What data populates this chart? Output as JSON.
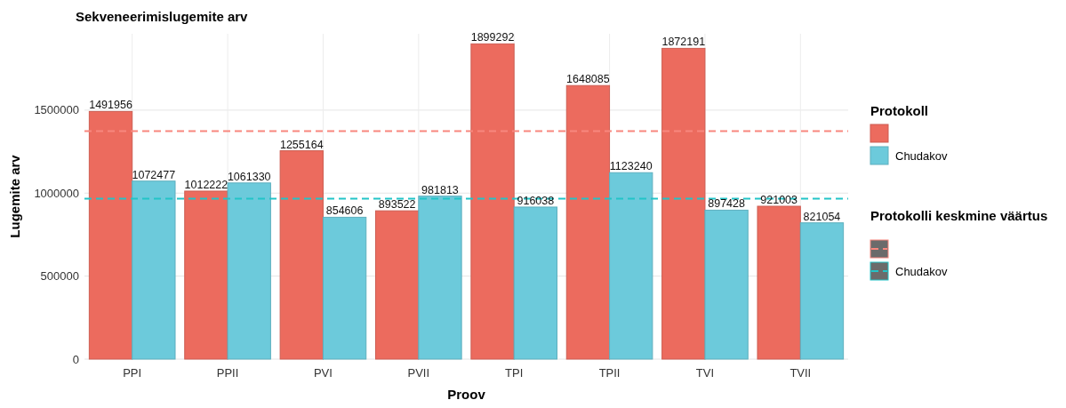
{
  "chart_data": {
    "type": "bar",
    "title": "Sekveneerimislugemite arv",
    "xlabel": "Proov",
    "ylabel": "Lugemite arv",
    "legend_title": "Protokoll",
    "annotations": [
      "Protokolli keskmine väärtus"
    ],
    "categories": [
      "PPI",
      "PPII",
      "PVI",
      "PVII",
      "TPI",
      "TPII",
      "TVI",
      "TVII"
    ],
    "series": [
      {
        "color": "#ec6b5e",
        "values": [
          1491956,
          1012222,
          1255164,
          893522,
          1899292,
          1648085,
          1872191,
          921003
        ]
      },
      {
        "name": "Chudakov",
        "color": "#6ccadb",
        "values": [
          1072477,
          1061330,
          854606,
          981813,
          916038,
          1123240,
          897428,
          821054
        ]
      }
    ],
    "ylim": [
      0,
      1960000
    ],
    "yticks": [
      0,
      500000,
      1000000,
      1500000
    ],
    "grid": true,
    "legend": "right",
    "data_labels": true,
    "ref_lines": [
      {
        "axis": "y",
        "value": 1374179,
        "color": "#f8877e",
        "line_style": "dashed"
      },
      {
        "axis": "y",
        "value": 965998,
        "label": "Chudakov",
        "color": "#22c4c8",
        "line_style": "dashed"
      }
    ]
  }
}
